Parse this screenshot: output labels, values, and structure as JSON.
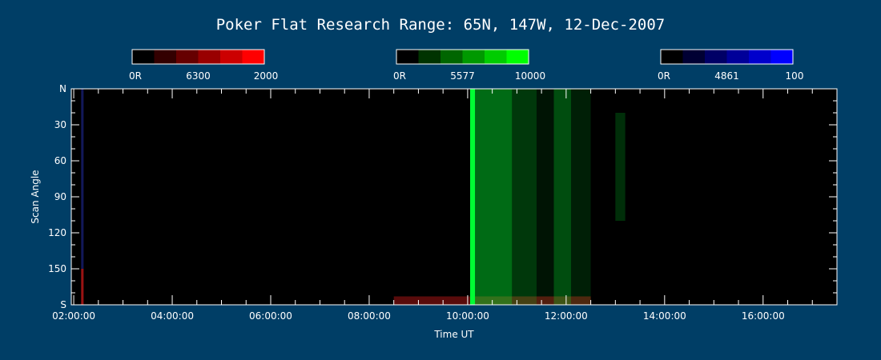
{
  "chart_data": {
    "type": "heatmap",
    "title": "Poker Flat Research Range: 65N, 147W, 12-Dec-2007",
    "xlabel": "Time UT",
    "ylabel": "Scan Angle",
    "x_tick_labels": [
      "02:00:00",
      "04:00:00",
      "06:00:00",
      "08:00:00",
      "10:00:00",
      "12:00:00",
      "14:00:00",
      "16:00:00"
    ],
    "x_ticks_hours": [
      2,
      4,
      6,
      8,
      10,
      12,
      14,
      16
    ],
    "x_range_hours": [
      1.95,
      17.5
    ],
    "y_tick_labels": [
      "N",
      "30",
      "60",
      "90",
      "120",
      "150",
      "S"
    ],
    "y_ticks": [
      0,
      30,
      60,
      90,
      120,
      150,
      180
    ],
    "y_range": [
      0,
      180
    ],
    "colorbars": [
      {
        "label_min": "0R",
        "label_mid": "6300",
        "label_max": "2000",
        "colors": [
          "#000000",
          "#330000",
          "#660000",
          "#990000",
          "#cc0000",
          "#ff0000"
        ]
      },
      {
        "label_min": "0R",
        "label_mid": "5577",
        "label_max": "10000",
        "colors": [
          "#000000",
          "#003300",
          "#006600",
          "#009900",
          "#00cc00",
          "#00ff00"
        ]
      },
      {
        "label_min": "0R",
        "label_mid": "4861",
        "label_max": "100",
        "colors": [
          "#000000",
          "#000033",
          "#000066",
          "#000099",
          "#0000cc",
          "#0000ff"
        ]
      }
    ],
    "series": [
      {
        "emission": "6300",
        "color": "#ff2020",
        "features": [
          {
            "time_start": 2.15,
            "time_end": 2.2,
            "angle_start": 150,
            "angle_end": 180,
            "intensity": 0.6
          },
          {
            "time_start": 8.5,
            "time_end": 12.5,
            "angle_start": 173,
            "angle_end": 180,
            "intensity": 0.35
          }
        ]
      },
      {
        "emission": "5577",
        "color": "#00ff33",
        "features": [
          {
            "time_start": 10.05,
            "time_end": 10.15,
            "angle_start": 0,
            "angle_end": 180,
            "intensity": 1.0
          },
          {
            "time_start": 10.15,
            "time_end": 10.9,
            "angle_start": 0,
            "angle_end": 180,
            "intensity": 0.42
          },
          {
            "time_start": 10.9,
            "time_end": 11.4,
            "angle_start": 0,
            "angle_end": 180,
            "intensity": 0.22
          },
          {
            "time_start": 11.4,
            "time_end": 11.75,
            "angle_start": 0,
            "angle_end": 180,
            "intensity": 0.08
          },
          {
            "time_start": 11.75,
            "time_end": 12.1,
            "angle_start": 0,
            "angle_end": 180,
            "intensity": 0.3
          },
          {
            "time_start": 12.1,
            "time_end": 12.5,
            "angle_start": 0,
            "angle_end": 180,
            "intensity": 0.12
          },
          {
            "time_start": 13.0,
            "time_end": 13.2,
            "angle_start": 20,
            "angle_end": 110,
            "intensity": 0.18
          }
        ]
      },
      {
        "emission": "4861",
        "color": "#3344ff",
        "features": [
          {
            "time_start": 2.15,
            "time_end": 2.2,
            "angle_start": 0,
            "angle_end": 150,
            "intensity": 0.35
          }
        ]
      }
    ]
  }
}
